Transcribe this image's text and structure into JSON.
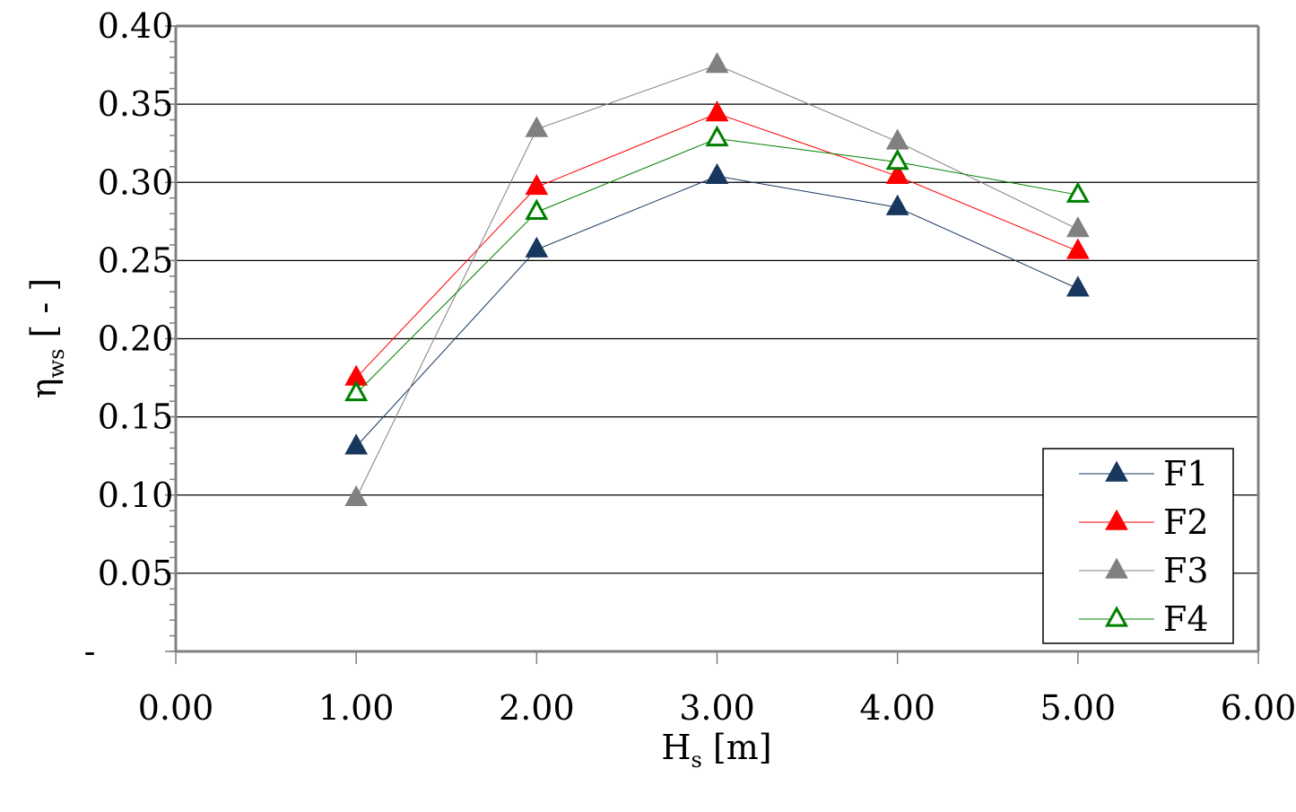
{
  "chart_data": {
    "type": "line",
    "title": "",
    "xlabel": {
      "main": "H",
      "sub": "s",
      "suffix": " [m]"
    },
    "ylabel": {
      "main": "η",
      "sub": "ws",
      "suffix": " [ - ]"
    },
    "xlim": [
      0,
      6
    ],
    "ylim": [
      0,
      0.4
    ],
    "x_ticks": [
      {
        "value": 0,
        "label": "0.00"
      },
      {
        "value": 1,
        "label": "1.00"
      },
      {
        "value": 2,
        "label": "2.00"
      },
      {
        "value": 3,
        "label": "3.00"
      },
      {
        "value": 4,
        "label": "4.00"
      },
      {
        "value": 5,
        "label": "5.00"
      },
      {
        "value": 6,
        "label": "6.00"
      }
    ],
    "y_ticks": [
      {
        "value": 0,
        "label": "-"
      },
      {
        "value": 0.05,
        "label": "0.05"
      },
      {
        "value": 0.1,
        "label": "0.10"
      },
      {
        "value": 0.15,
        "label": "0.15"
      },
      {
        "value": 0.2,
        "label": "0.20"
      },
      {
        "value": 0.25,
        "label": "0.25"
      },
      {
        "value": 0.3,
        "label": "0.30"
      },
      {
        "value": 0.35,
        "label": "0.35"
      },
      {
        "value": 0.4,
        "label": "0.40"
      }
    ],
    "grid": "horizontal",
    "legend_position": "bottom-right",
    "x": [
      1,
      2,
      3,
      4,
      5
    ],
    "series": [
      {
        "name": "F1",
        "color": "#17375e",
        "marker": "triangle-filled",
        "values": [
          0.131,
          0.257,
          0.304,
          0.284,
          0.232
        ]
      },
      {
        "name": "F2",
        "color": "#ff0000",
        "marker": "triangle-filled",
        "values": [
          0.175,
          0.297,
          0.344,
          0.304,
          0.256
        ]
      },
      {
        "name": "F3",
        "color": "#808080",
        "marker": "triangle-filled",
        "values": [
          0.098,
          0.334,
          0.375,
          0.326,
          0.27
        ]
      },
      {
        "name": "F4",
        "color": "#008000",
        "marker": "triangle-open",
        "values": [
          0.165,
          0.281,
          0.328,
          0.313,
          0.292
        ]
      }
    ]
  }
}
